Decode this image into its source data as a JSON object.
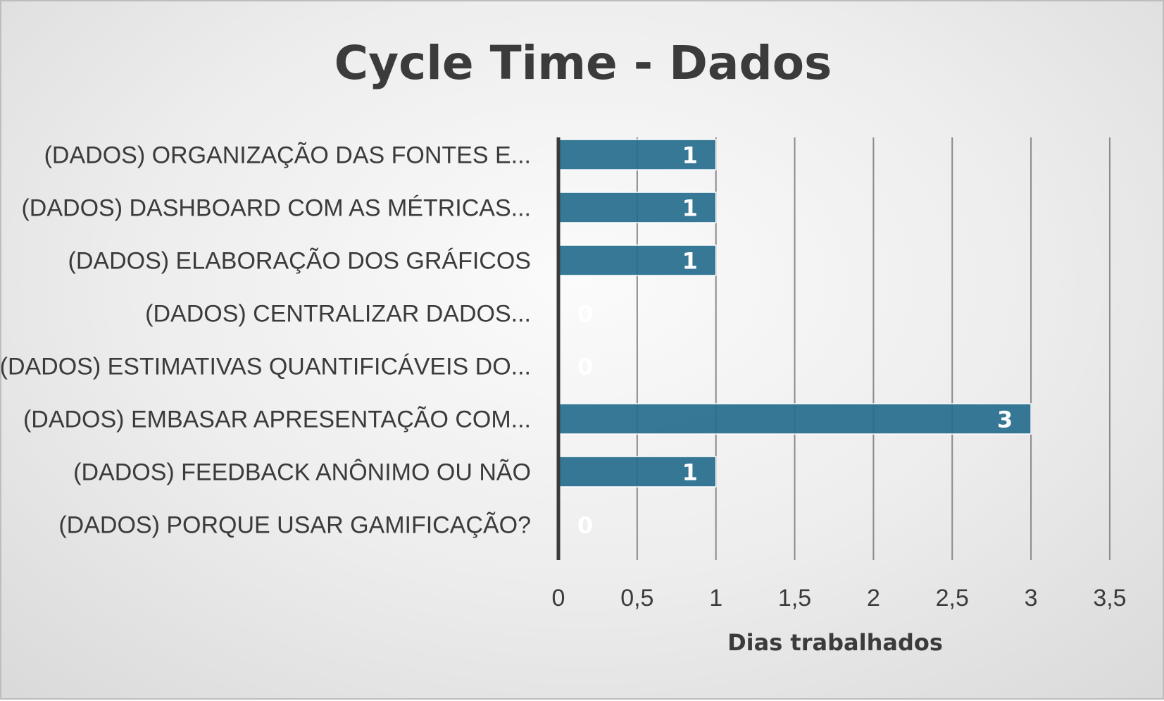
{
  "colors": {
    "bar": "#256c8c",
    "bar_edge": "#ffffff",
    "gridline": "#8a8a8a",
    "axis_line": "#3a3a3a",
    "text": "#3b3b3b",
    "data_label": "#ffffff"
  },
  "chart_data": {
    "type": "bar",
    "orientation": "horizontal",
    "title": "Cycle Time - Dados",
    "xlabel": "Dias trabalhados",
    "ylabel": "",
    "xlim": [
      0,
      3.5
    ],
    "x_ticks": [
      "0",
      "0,5",
      "1",
      "1,5",
      "2",
      "2,5",
      "3",
      "3,5"
    ],
    "grid": true,
    "legend": "none",
    "categories": [
      "(DADOS) ORGANIZAÇÃO DAS FONTES E...",
      "(DADOS) DASHBOARD COM AS MÉTRICAS...",
      "(DADOS) ELABORAÇÃO DOS GRÁFICOS",
      "(DADOS) CENTRALIZAR DADOS...",
      "(DADOS) ESTIMATIVAS QUANTIFICÁVEIS DO...",
      "(DADOS) EMBASAR APRESENTAÇÃO COM...",
      "(DADOS) FEEDBACK ANÔNIMO OU NÃO",
      "(DADOS) PORQUE USAR GAMIFICAÇÃO?"
    ],
    "values": [
      1,
      1,
      1,
      0,
      0,
      3,
      1,
      0
    ],
    "data_labels": [
      "1",
      "1",
      "1",
      "0",
      "0",
      "3",
      "1",
      "0"
    ]
  }
}
